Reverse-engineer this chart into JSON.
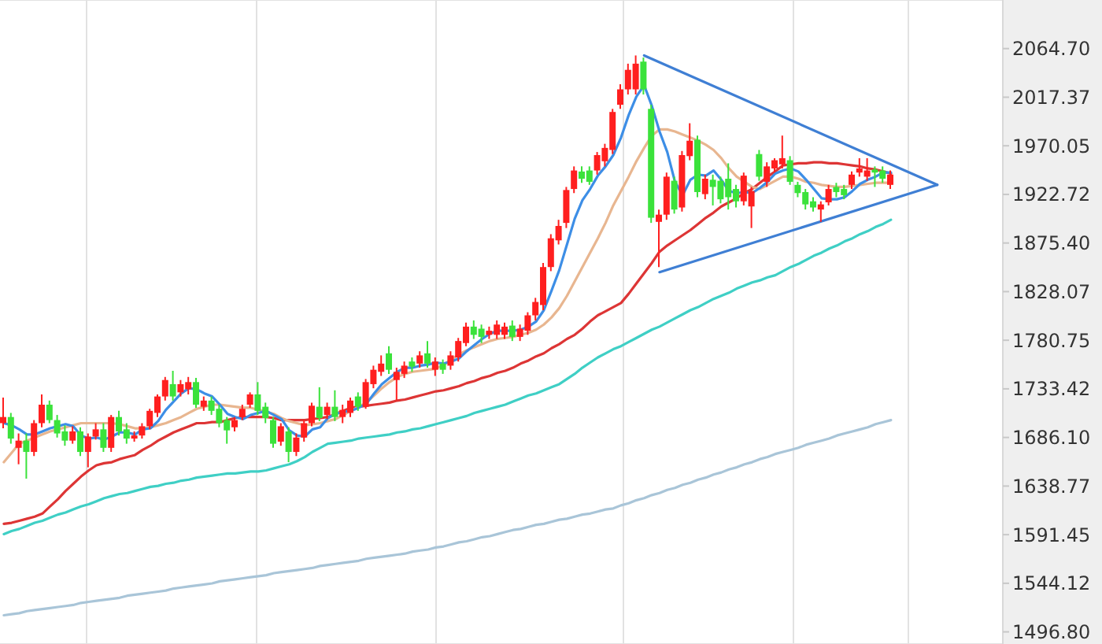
{
  "chart_data": {
    "type": "candlestick",
    "categories": [
      null,
      null,
      null,
      null,
      null,
      null,
      null,
      null,
      null,
      null,
      null,
      null,
      null,
      null,
      null,
      null,
      null,
      null,
      null,
      null,
      null,
      null,
      null,
      null,
      null,
      null,
      null,
      null,
      null,
      null,
      null,
      null,
      null,
      null,
      null,
      null,
      null,
      null,
      null,
      null,
      null,
      null,
      null,
      null,
      null,
      null,
      null,
      null,
      null,
      null,
      null,
      null,
      null,
      null,
      null,
      null,
      null,
      null,
      null,
      null,
      null,
      null,
      null,
      null,
      null,
      null,
      null,
      null,
      null,
      null,
      null,
      null,
      null,
      null,
      null,
      null,
      null,
      null,
      null,
      null,
      null,
      null,
      null,
      null,
      null,
      null,
      null,
      null,
      null,
      null,
      null,
      null,
      null,
      null,
      null,
      null,
      null,
      null,
      null,
      null,
      null,
      null,
      null,
      null,
      null,
      null,
      null,
      null,
      null,
      null,
      null,
      null,
      null,
      null,
      null,
      null,
      null,
      null,
      null,
      null,
      null,
      null,
      null,
      null,
      null,
      null,
      null,
      null,
      null,
      null
    ],
    "ohlc": [
      [
        1700,
        1725,
        1695,
        1706
      ],
      [
        1706,
        1710,
        1680,
        1685
      ],
      [
        1676,
        1690,
        1660,
        1683
      ],
      [
        1683,
        1690,
        1646,
        1672
      ],
      [
        1672,
        1703,
        1668,
        1700
      ],
      [
        1700,
        1728,
        1696,
        1718
      ],
      [
        1718,
        1722,
        1700,
        1703
      ],
      [
        1703,
        1708,
        1686,
        1690
      ],
      [
        1692,
        1698,
        1678,
        1683
      ],
      [
        1683,
        1697,
        1680,
        1692
      ],
      [
        1692,
        1696,
        1668,
        1672
      ],
      [
        1672,
        1690,
        1657,
        1687
      ],
      [
        1687,
        1700,
        1684,
        1694
      ],
      [
        1694,
        1700,
        1672,
        1676
      ],
      [
        1676,
        1708,
        1672,
        1706
      ],
      [
        1706,
        1712,
        1688,
        1692
      ],
      [
        1694,
        1700,
        1680,
        1685
      ],
      [
        1685,
        1692,
        1682,
        1688
      ],
      [
        1688,
        1700,
        1685,
        1697
      ],
      [
        1697,
        1714,
        1694,
        1712
      ],
      [
        1710,
        1728,
        1706,
        1726
      ],
      [
        1726,
        1745,
        1722,
        1742
      ],
      [
        1738,
        1751,
        1722,
        1726
      ],
      [
        1730,
        1742,
        1726,
        1738
      ],
      [
        1733,
        1745,
        1728,
        1740
      ],
      [
        1740,
        1744,
        1715,
        1718
      ],
      [
        1716,
        1726,
        1712,
        1722
      ],
      [
        1722,
        1726,
        1708,
        1712
      ],
      [
        1714,
        1718,
        1696,
        1700
      ],
      [
        1703,
        1706,
        1680,
        1693
      ],
      [
        1696,
        1706,
        1692,
        1703
      ],
      [
        1706,
        1718,
        1703,
        1714
      ],
      [
        1718,
        1730,
        1715,
        1728
      ],
      [
        1728,
        1740,
        1708,
        1712
      ],
      [
        1716,
        1720,
        1700,
        1705
      ],
      [
        1703,
        1706,
        1676,
        1680
      ],
      [
        1682,
        1700,
        1678,
        1697
      ],
      [
        1692,
        1696,
        1662,
        1672
      ],
      [
        1672,
        1690,
        1668,
        1686
      ],
      [
        1686,
        1703,
        1682,
        1700
      ],
      [
        1700,
        1720,
        1697,
        1717
      ],
      [
        1716,
        1735,
        1702,
        1705
      ],
      [
        1708,
        1720,
        1704,
        1716
      ],
      [
        1716,
        1732,
        1702,
        1706
      ],
      [
        1706,
        1718,
        1700,
        1713
      ],
      [
        1710,
        1725,
        1706,
        1722
      ],
      [
        1726,
        1730,
        1712,
        1716
      ],
      [
        1716,
        1743,
        1714,
        1740
      ],
      [
        1738,
        1756,
        1734,
        1752
      ],
      [
        1750,
        1766,
        1746,
        1758
      ],
      [
        1768,
        1775,
        1748,
        1752
      ],
      [
        1742,
        1754,
        1722,
        1750
      ],
      [
        1748,
        1760,
        1744,
        1756
      ],
      [
        1760,
        1764,
        1750,
        1755
      ],
      [
        1758,
        1770,
        1754,
        1766
      ],
      [
        1768,
        1780,
        1754,
        1758
      ],
      [
        1752,
        1764,
        1746,
        1760
      ],
      [
        1758,
        1762,
        1748,
        1752
      ],
      [
        1756,
        1770,
        1752,
        1766
      ],
      [
        1764,
        1783,
        1760,
        1780
      ],
      [
        1778,
        1798,
        1775,
        1794
      ],
      [
        1794,
        1800,
        1782,
        1786
      ],
      [
        1792,
        1796,
        1778,
        1784
      ],
      [
        1786,
        1794,
        1782,
        1790
      ],
      [
        1786,
        1800,
        1782,
        1796
      ],
      [
        1786,
        1798,
        1782,
        1794
      ],
      [
        1795,
        1800,
        1780,
        1784
      ],
      [
        1784,
        1796,
        1780,
        1792
      ],
      [
        1790,
        1808,
        1786,
        1805
      ],
      [
        1805,
        1822,
        1800,
        1818
      ],
      [
        1815,
        1856,
        1810,
        1852
      ],
      [
        1852,
        1884,
        1848,
        1880
      ],
      [
        1878,
        1898,
        1874,
        1892
      ],
      [
        1895,
        1930,
        1890,
        1927
      ],
      [
        1928,
        1950,
        1924,
        1946
      ],
      [
        1945,
        1950,
        1934,
        1938
      ],
      [
        1946,
        1950,
        1932,
        1935
      ],
      [
        1946,
        1964,
        1942,
        1961
      ],
      [
        1955,
        1972,
        1950,
        1968
      ],
      [
        1966,
        2006,
        1962,
        2003
      ],
      [
        2010,
        2030,
        2006,
        2025
      ],
      [
        2025,
        2050,
        2020,
        2044
      ],
      [
        2025,
        2058,
        2020,
        2050
      ],
      [
        2052,
        2056,
        2020,
        2025
      ],
      [
        2006,
        2010,
        1895,
        1900
      ],
      [
        1896,
        1908,
        1852,
        1903
      ],
      [
        1903,
        1944,
        1898,
        1940
      ],
      [
        1936,
        1940,
        1904,
        1908
      ],
      [
        1910,
        1965,
        1906,
        1961
      ],
      [
        1960,
        1992,
        1956,
        1975
      ],
      [
        1976,
        1980,
        1920,
        1925
      ],
      [
        1923,
        1942,
        1918,
        1938
      ],
      [
        1937,
        1942,
        1912,
        1930
      ],
      [
        1936,
        1940,
        1914,
        1918
      ],
      [
        1938,
        1953,
        1908,
        1920
      ],
      [
        1928,
        1932,
        1910,
        1916
      ],
      [
        1916,
        1944,
        1912,
        1941
      ],
      [
        1911,
        1930,
        1890,
        1926
      ],
      [
        1962,
        1966,
        1936,
        1940
      ],
      [
        1935,
        1954,
        1930,
        1950
      ],
      [
        1948,
        1958,
        1944,
        1956
      ],
      [
        1952,
        1980,
        1948,
        1958
      ],
      [
        1956,
        1960,
        1932,
        1935
      ],
      [
        1932,
        1935,
        1920,
        1924
      ],
      [
        1925,
        1928,
        1908,
        1913
      ],
      [
        1916,
        1920,
        1906,
        1910
      ],
      [
        1908,
        1916,
        1896,
        1913
      ],
      [
        1915,
        1932,
        1912,
        1928
      ],
      [
        1930,
        1934,
        1920,
        1925
      ],
      [
        1928,
        1932,
        1918,
        1922
      ],
      [
        1932,
        1945,
        1928,
        1942
      ],
      [
        1944,
        1958,
        1940,
        1948
      ],
      [
        1940,
        1958,
        1936,
        1946
      ],
      [
        1947,
        1950,
        1930,
        1944
      ],
      [
        1946,
        1950,
        1934,
        1938
      ],
      [
        1932,
        1946,
        1928,
        1942
      ],
      null,
      null,
      null,
      null,
      null,
      null,
      null,
      null,
      null,
      null,
      null,
      null,
      null,
      null
    ],
    "colors": [
      "#ff1f1f",
      "#3be23b",
      "#ff1f1f",
      "#3be23b",
      "#ff1f1f",
      "#ff1f1f",
      "#3be23b",
      "#3be23b",
      "#3be23b",
      "#ff1f1f",
      "#3be23b",
      "#ff1f1f",
      "#ff1f1f",
      "#3be23b",
      "#ff1f1f",
      "#3be23b",
      "#3be23b",
      "#ff1f1f",
      "#ff1f1f",
      "#ff1f1f",
      "#ff1f1f",
      "#ff1f1f",
      "#3be23b",
      "#ff1f1f",
      "#ff1f1f",
      "#3be23b",
      "#ff1f1f",
      "#3be23b",
      "#3be23b",
      "#3be23b",
      "#ff1f1f",
      "#ff1f1f",
      "#ff1f1f",
      "#3be23b",
      "#3be23b",
      "#3be23b",
      "#ff1f1f",
      "#3be23b",
      "#ff1f1f",
      "#ff1f1f",
      "#ff1f1f",
      "#3be23b",
      "#ff1f1f",
      "#3be23b",
      "#ff1f1f",
      "#ff1f1f",
      "#3be23b",
      "#ff1f1f",
      "#ff1f1f",
      "#ff1f1f",
      "#3be23b",
      "#ff1f1f",
      "#ff1f1f",
      "#3be23b",
      "#ff1f1f",
      "#3be23b",
      "#ff1f1f",
      "#3be23b",
      "#ff1f1f",
      "#ff1f1f",
      "#ff1f1f",
      "#3be23b",
      "#3be23b",
      "#ff1f1f",
      "#ff1f1f",
      "#ff1f1f",
      "#3be23b",
      "#ff1f1f",
      "#ff1f1f",
      "#ff1f1f",
      "#ff1f1f",
      "#ff1f1f",
      "#ff1f1f",
      "#ff1f1f",
      "#ff1f1f",
      "#3be23b",
      "#3be23b",
      "#ff1f1f",
      "#ff1f1f",
      "#ff1f1f",
      "#ff1f1f",
      "#ff1f1f",
      "#ff1f1f",
      "#3be23b",
      "#3be23b",
      "#ff1f1f",
      "#ff1f1f",
      "#3be23b",
      "#ff1f1f",
      "#ff1f1f",
      "#3be23b",
      "#ff1f1f",
      "#3be23b",
      "#3be23b",
      "#3be23b",
      "#3be23b",
      "#ff1f1f",
      "#ff1f1f",
      "#3be23b",
      "#ff1f1f",
      "#ff1f1f",
      "#ff1f1f",
      "#3be23b",
      "#3be23b",
      "#3be23b",
      "#3be23b",
      "#ff1f1f",
      "#ff1f1f",
      "#3be23b",
      "#3be23b",
      "#ff1f1f",
      "#ff1f1f",
      "#ff1f1f",
      "#3be23b",
      "#3be23b",
      "#ff1f1f",
      null,
      null,
      null,
      null,
      null,
      null,
      null,
      null,
      null,
      null,
      null,
      null,
      null,
      null
    ],
    "series": [
      {
        "type": "line",
        "color": "#a9c5d8",
        "values": [
          1513,
          1514,
          1515,
          1517,
          1518,
          1519,
          1520,
          1521,
          1522,
          1523,
          1525,
          1526,
          1527,
          1528,
          1529,
          1530,
          1532,
          1533,
          1534,
          1535,
          1536,
          1537,
          1539,
          1540,
          1541,
          1542,
          1543,
          1544,
          1546,
          1547,
          1548,
          1549,
          1550,
          1551,
          1552,
          1554,
          1555,
          1556,
          1557,
          1558,
          1559,
          1561,
          1562,
          1563,
          1564,
          1565,
          1566,
          1568,
          1569,
          1570,
          1571,
          1572,
          1573,
          1575,
          1576,
          1577,
          1579,
          1580,
          1582,
          1584,
          1585,
          1587,
          1589,
          1590,
          1592,
          1594,
          1596,
          1597,
          1599,
          1601,
          1602,
          1604,
          1606,
          1607,
          1609,
          1611,
          1612,
          1614,
          1616,
          1617,
          1620,
          1622,
          1625,
          1627,
          1630,
          1632,
          1635,
          1637,
          1640,
          1642,
          1645,
          1647,
          1650,
          1652,
          1655,
          1657,
          1660,
          1662,
          1665,
          1667,
          1670,
          1672,
          1674,
          1676,
          1679,
          1681,
          1683,
          1685,
          1688,
          1690,
          1692,
          1694,
          1696,
          1699,
          1701,
          1703,
          null,
          null,
          null,
          null,
          null,
          null,
          null,
          null,
          null,
          null,
          null,
          null,
          null,
          null
        ]
      },
      {
        "type": "line",
        "color": "#3fcfc5",
        "values": [
          1592,
          1595,
          1597,
          1600,
          1603,
          1605,
          1608,
          1611,
          1613,
          1616,
          1619,
          1621,
          1624,
          1627,
          1629,
          1631,
          1632,
          1634,
          1636,
          1638,
          1639,
          1641,
          1642,
          1644,
          1645,
          1647,
          1648,
          1649,
          1650,
          1651,
          1651,
          1652,
          1653,
          1653,
          1654,
          1656,
          1658,
          1660,
          1663,
          1667,
          1672,
          1676,
          1680,
          1681,
          1682,
          1683,
          1685,
          1686,
          1687,
          1688,
          1689,
          1691,
          1692,
          1694,
          1695,
          1697,
          1699,
          1701,
          1703,
          1705,
          1707,
          1710,
          1712,
          1714,
          1716,
          1718,
          1721,
          1724,
          1727,
          1729,
          1732,
          1735,
          1738,
          1743,
          1748,
          1754,
          1759,
          1764,
          1768,
          1772,
          1775,
          1779,
          1783,
          1787,
          1791,
          1794,
          1798,
          1802,
          1806,
          1810,
          1813,
          1817,
          1821,
          1824,
          1827,
          1831,
          1834,
          1837,
          1839,
          1842,
          1844,
          1848,
          1852,
          1855,
          1859,
          1863,
          1866,
          1870,
          1873,
          1877,
          1880,
          1884,
          1887,
          1891,
          1894,
          1898,
          null,
          null,
          null,
          null,
          null,
          null,
          null,
          null,
          null,
          null,
          null,
          null,
          null,
          null
        ]
      },
      {
        "type": "line",
        "color": "#dd3535",
        "values": [
          1602,
          1603,
          1605,
          1607,
          1609,
          1612,
          1619,
          1626,
          1634,
          1641,
          1648,
          1654,
          1659,
          1661,
          1662,
          1665,
          1667,
          1669,
          1674,
          1678,
          1683,
          1687,
          1691,
          1694,
          1697,
          1700,
          1700,
          1701,
          1701,
          1703,
          1705,
          1706,
          1706,
          1706,
          1706,
          1705,
          1703,
          1703,
          1703,
          1703,
          1704,
          1705,
          1706,
          1709,
          1712,
          1715,
          1716,
          1717,
          1718,
          1719,
          1720,
          1722,
          1723,
          1725,
          1727,
          1729,
          1731,
          1732,
          1734,
          1736,
          1739,
          1741,
          1744,
          1746,
          1749,
          1751,
          1754,
          1758,
          1761,
          1765,
          1768,
          1773,
          1777,
          1782,
          1786,
          1792,
          1799,
          1805,
          1809,
          1813,
          1817,
          1826,
          1836,
          1846,
          1856,
          1867,
          1873,
          1878,
          1883,
          1888,
          1894,
          1900,
          1905,
          1911,
          1915,
          1919,
          1924,
          1928,
          1934,
          1940,
          1945,
          1951,
          1952,
          1953,
          1953,
          1954,
          1954,
          1953,
          1953,
          1952,
          1951,
          1950,
          1948,
          1947,
          1945,
          1943,
          null,
          null,
          null,
          null,
          null,
          null,
          null,
          null,
          null,
          null,
          null,
          null,
          null,
          null
        ]
      },
      {
        "type": "line",
        "color": "#e8b690",
        "values": [
          1662,
          1671,
          1680,
          1683,
          1686,
          1689,
          1692,
          1694,
          1696,
          1698,
          1700,
          1700,
          1700,
          1700,
          1700,
          1699,
          1697,
          1695,
          1695,
          1696,
          1698,
          1700,
          1703,
          1706,
          1710,
          1714,
          1716,
          1718,
          1718,
          1717,
          1716,
          1715,
          1715,
          1713,
          1711,
          1709,
          1705,
          1702,
          1700,
          1698,
          1699,
          1700,
          1702,
          1704,
          1708,
          1712,
          1716,
          1720,
          1727,
          1734,
          1740,
          1745,
          1748,
          1750,
          1751,
          1752,
          1753,
          1757,
          1762,
          1767,
          1771,
          1774,
          1777,
          1780,
          1782,
          1783,
          1784,
          1786,
          1788,
          1791,
          1796,
          1803,
          1812,
          1824,
          1838,
          1852,
          1866,
          1880,
          1895,
          1912,
          1926,
          1940,
          1955,
          1968,
          1980,
          1986,
          1986,
          1984,
          1981,
          1978,
          1975,
          1971,
          1966,
          1958,
          1948,
          1940,
          1935,
          1930,
          1928,
          1932,
          1936,
          1940,
          1940,
          1938,
          1935,
          1934,
          1932,
          1931,
          1930,
          1930,
          1931,
          1932,
          1933,
          1934,
          1934,
          1934,
          null,
          null,
          null,
          null,
          null,
          null,
          null,
          null,
          null,
          null,
          null,
          null,
          null,
          null
        ]
      },
      {
        "type": "line",
        "color": "#3d8ee6",
        "values": [
          1700,
          1698,
          1694,
          1689,
          1689,
          1692,
          1695,
          1697,
          1699,
          1697,
          1688,
          1685,
          1686,
          1684,
          1687,
          1691,
          1691,
          1689,
          1694,
          1695,
          1702,
          1713,
          1721,
          1729,
          1734,
          1733,
          1729,
          1726,
          1718,
          1709,
          1706,
          1704,
          1708,
          1710,
          1712,
          1708,
          1704,
          1693,
          1688,
          1687,
          1694,
          1696,
          1705,
          1709,
          1711,
          1712,
          1715,
          1719,
          1729,
          1738,
          1744,
          1750,
          1754,
          1754,
          1756,
          1757,
          1759,
          1758,
          1760,
          1763,
          1770,
          1776,
          1782,
          1787,
          1790,
          1790,
          1790,
          1791,
          1794,
          1799,
          1810,
          1829,
          1849,
          1874,
          1899,
          1917,
          1928,
          1941,
          1950,
          1961,
          1978,
          2000,
          2018,
          2029,
          2009,
          1984,
          1964,
          1935,
          1922,
          1937,
          1942,
          1941,
          1946,
          1937,
          1926,
          1924,
          1925,
          1924,
          1929,
          1935,
          1943,
          1946,
          1948,
          1945,
          1937,
          1928,
          1919,
          1918,
          1918,
          1920,
          1926,
          1933,
          1937,
          1940,
          1944,
          1944,
          null,
          null,
          null,
          null,
          null,
          null,
          null,
          null,
          null,
          null,
          null,
          null,
          null,
          null
        ]
      },
      {
        "type": "line",
        "color": "#3f7fd4",
        "values": [
          null,
          null,
          null,
          null,
          null,
          null,
          null,
          null,
          null,
          null,
          null,
          null,
          null,
          null,
          null,
          null,
          null,
          null,
          null,
          null,
          null,
          null,
          null,
          null,
          null,
          null,
          null,
          null,
          null,
          null,
          null,
          null,
          null,
          null,
          null,
          null,
          null,
          null,
          null,
          null,
          null,
          null,
          null,
          null,
          null,
          null,
          null,
          null,
          null,
          null,
          null,
          null,
          null,
          null,
          null,
          null,
          null,
          null,
          null,
          null,
          null,
          null,
          null,
          null,
          null,
          null,
          null,
          null,
          null,
          null,
          null,
          null,
          null,
          null,
          null,
          null,
          null,
          null,
          null,
          null,
          null,
          null,
          null,
          2058,
          null,
          null,
          null,
          null,
          null,
          null,
          null,
          null,
          null,
          null,
          null,
          null,
          null,
          null,
          null,
          null,
          null,
          null,
          null,
          null,
          null,
          null,
          null,
          null,
          null,
          null,
          null,
          null,
          null,
          null,
          null,
          null,
          null,
          null,
          null,
          null,
          null,
          1932,
          null,
          null,
          null,
          null,
          null,
          null,
          null,
          null
        ]
      },
      {
        "type": "line",
        "color": "#3f7fd4",
        "values": [
          null,
          null,
          null,
          null,
          null,
          null,
          null,
          null,
          null,
          null,
          null,
          null,
          null,
          null,
          null,
          null,
          null,
          null,
          null,
          null,
          null,
          null,
          null,
          null,
          null,
          null,
          null,
          null,
          null,
          null,
          null,
          null,
          null,
          null,
          null,
          null,
          null,
          null,
          null,
          null,
          null,
          null,
          null,
          null,
          null,
          null,
          null,
          null,
          null,
          null,
          null,
          null,
          null,
          null,
          null,
          null,
          null,
          null,
          null,
          null,
          null,
          null,
          null,
          null,
          null,
          null,
          null,
          null,
          null,
          null,
          null,
          null,
          null,
          null,
          null,
          null,
          null,
          null,
          null,
          null,
          null,
          null,
          null,
          null,
          null,
          1847,
          null,
          null,
          null,
          null,
          null,
          null,
          null,
          null,
          null,
          null,
          null,
          null,
          null,
          null,
          null,
          null,
          null,
          null,
          null,
          null,
          null,
          null,
          null,
          null,
          null,
          null,
          null,
          null,
          null,
          null,
          null,
          null,
          null,
          null,
          null,
          1932,
          null,
          null,
          null,
          null,
          null,
          null,
          null,
          null
        ]
      }
    ],
    "ylim": [
      1485,
      2112
    ],
    "yticks": [
      {
        "value": 1496.8,
        "label": "1496.80"
      },
      1544.12,
      1591.45,
      1638.77,
      {
        "value": 1686.1,
        "label": "1686.10"
      },
      1733.42,
      1780.75,
      1828.07,
      {
        "value": 1875.4,
        "label": "1875.40"
      },
      1922.72,
      1970.05,
      2017.37,
      {
        "value": 2064.7,
        "label": "2064.70"
      }
    ],
    "grid": true,
    "tick_labels": "y"
  }
}
